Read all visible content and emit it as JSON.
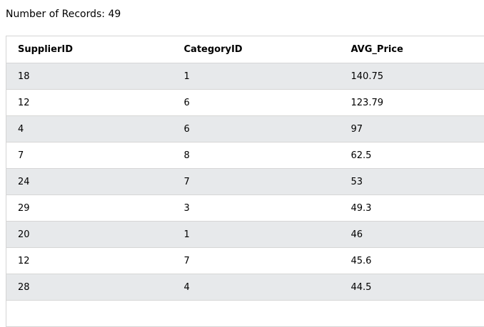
{
  "summary": {
    "label": "Number of Records: 49"
  },
  "table": {
    "columns": [
      "SupplierID",
      "CategoryID",
      "AVG_Price"
    ],
    "rows": [
      [
        "18",
        "1",
        "140.75"
      ],
      [
        "12",
        "6",
        "123.79"
      ],
      [
        "4",
        "6",
        "97"
      ],
      [
        "7",
        "8",
        "62.5"
      ],
      [
        "24",
        "7",
        "53"
      ],
      [
        "29",
        "3",
        "49.3"
      ],
      [
        "20",
        "1",
        "46"
      ],
      [
        "12",
        "7",
        "45.6"
      ],
      [
        "28",
        "4",
        "44.5"
      ],
      [
        "",
        "",
        ""
      ]
    ]
  }
}
